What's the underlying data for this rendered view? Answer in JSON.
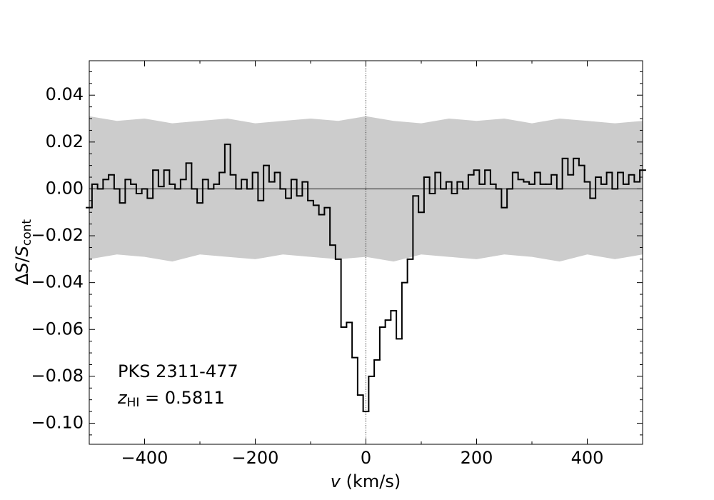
{
  "chart_data": {
    "type": "step",
    "xlabel": {
      "var": "v",
      "unit": " (km/s)"
    },
    "ylabel": {
      "delta": "Δ",
      "var": "S",
      "slash": "/",
      "var2": "S",
      "sub": "cont"
    },
    "annotation": {
      "source": "PKS 2311-477",
      "z": "z",
      "z_sub": "HI",
      "z_rest": " = 0.5811"
    },
    "xlim": [
      -500,
      500
    ],
    "ylim": [
      -0.109,
      0.0547
    ],
    "xticks": [
      {
        "value": -400,
        "label": "−400"
      },
      {
        "value": -200,
        "label": "−200"
      },
      0,
      200,
      400
    ],
    "xticks_minor": [
      -500,
      -300,
      -100,
      100,
      300,
      500
    ],
    "yticks": [
      {
        "value": -0.1,
        "label": "−0.10"
      },
      {
        "value": -0.08,
        "label": "−0.08"
      },
      {
        "value": -0.06,
        "label": "−0.06"
      },
      {
        "value": -0.04,
        "label": "−0.04"
      },
      {
        "value": -0.02,
        "label": "−0.02"
      },
      {
        "value": 0,
        "label": "0.00"
      },
      {
        "value": 0.02,
        "label": "0.02"
      },
      {
        "value": 0.04,
        "label": "0.04"
      }
    ],
    "yticks_minor": [
      -0.105,
      -0.095,
      -0.09,
      -0.085,
      -0.075,
      -0.07,
      -0.065,
      -0.055,
      -0.05,
      -0.045,
      -0.035,
      -0.03,
      -0.025,
      -0.015,
      -0.01,
      -0.005,
      0.005,
      0.01,
      0.015,
      0.025,
      0.03,
      0.035,
      0.045,
      0.05
    ],
    "reference_lines": {
      "x": 0,
      "y": 0
    },
    "color": "#000000",
    "band": {
      "color": "#cccccc",
      "x": [
        -500,
        -450,
        -400,
        -350,
        -300,
        -250,
        -200,
        -150,
        -100,
        -50,
        0,
        50,
        100,
        150,
        200,
        250,
        300,
        350,
        400,
        450,
        500
      ],
      "upper": [
        0.031,
        0.029,
        0.03,
        0.028,
        0.029,
        0.03,
        0.028,
        0.029,
        0.03,
        0.029,
        0.031,
        0.029,
        0.028,
        0.03,
        0.029,
        0.03,
        0.028,
        0.03,
        0.029,
        0.028,
        0.029
      ],
      "lower": [
        -0.03,
        -0.028,
        -0.029,
        -0.031,
        -0.028,
        -0.029,
        -0.03,
        -0.028,
        -0.029,
        -0.03,
        -0.029,
        -0.031,
        -0.028,
        -0.029,
        -0.03,
        -0.028,
        -0.029,
        -0.031,
        -0.028,
        -0.03,
        -0.028
      ]
    },
    "x": [
      -500,
      -490,
      -480,
      -470,
      -460,
      -450,
      -440,
      -430,
      -420,
      -410,
      -400,
      -390,
      -380,
      -370,
      -360,
      -350,
      -340,
      -330,
      -320,
      -310,
      -300,
      -290,
      -280,
      -270,
      -260,
      -250,
      -240,
      -230,
      -220,
      -210,
      -200,
      -190,
      -180,
      -170,
      -160,
      -150,
      -140,
      -130,
      -120,
      -110,
      -100,
      -90,
      -80,
      -70,
      -60,
      -50,
      -40,
      -30,
      -20,
      -10,
      0,
      10,
      20,
      30,
      40,
      50,
      60,
      70,
      80,
      90,
      100,
      110,
      120,
      130,
      140,
      150,
      160,
      170,
      180,
      190,
      200,
      210,
      220,
      230,
      240,
      250,
      260,
      270,
      280,
      290,
      300,
      310,
      320,
      330,
      340,
      350,
      360,
      370,
      380,
      390,
      400,
      410,
      420,
      430,
      440,
      450,
      460,
      470,
      480,
      490,
      500
    ],
    "values": [
      -0.008,
      0.002,
      0.0,
      0.004,
      0.006,
      0.0,
      -0.006,
      0.004,
      0.002,
      -0.002,
      0.0,
      -0.004,
      0.008,
      0.001,
      0.008,
      0.002,
      0.0,
      0.004,
      0.011,
      0.0,
      -0.006,
      0.004,
      0.0,
      0.002,
      0.007,
      0.019,
      0.006,
      0.0,
      0.004,
      0.0,
      0.007,
      -0.005,
      0.01,
      0.003,
      0.007,
      0.0,
      -0.004,
      0.004,
      -0.003,
      0.003,
      -0.005,
      -0.007,
      -0.011,
      -0.008,
      -0.024,
      -0.03,
      -0.059,
      -0.057,
      -0.072,
      -0.088,
      -0.095,
      -0.08,
      -0.073,
      -0.059,
      -0.056,
      -0.052,
      -0.064,
      -0.04,
      -0.03,
      -0.003,
      -0.01,
      0.005,
      -0.002,
      0.007,
      0.0,
      0.003,
      -0.002,
      0.003,
      0.0,
      0.006,
      0.008,
      0.002,
      0.008,
      0.002,
      0.0,
      -0.008,
      0.0,
      0.007,
      0.004,
      0.003,
      0.002,
      0.007,
      0.002,
      0.002,
      0.006,
      0.0,
      0.013,
      0.006,
      0.013,
      0.01,
      0.003,
      -0.004,
      0.005,
      0.002,
      0.007,
      0.0,
      0.007,
      0.002,
      0.006,
      0.003,
      0.008
    ]
  }
}
